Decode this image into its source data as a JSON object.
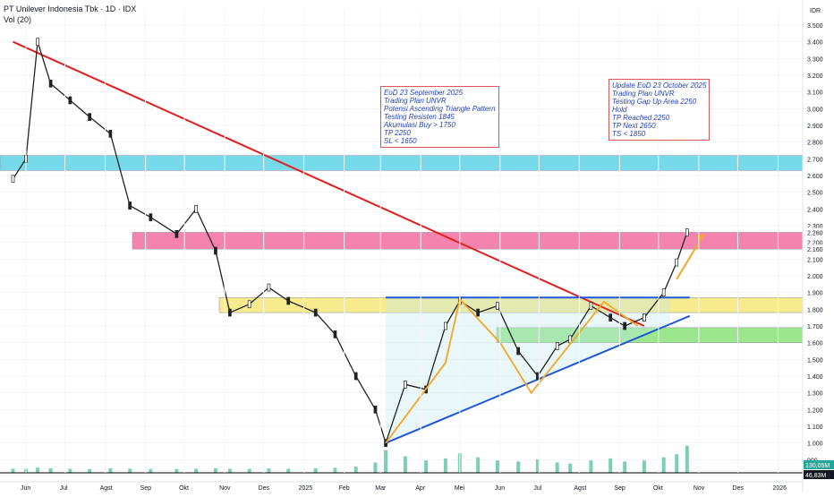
{
  "header": {
    "title": "PT Unilever Indonesia Tbk · 1D · IDX",
    "volume_label": "Vol (20)"
  },
  "price_axis": {
    "currency": "IDR",
    "ticks": [
      "3.500",
      "3.400",
      "3.300",
      "3.200",
      "3.100",
      "3.000",
      "2.900",
      "2.800",
      "2.700",
      "2.600",
      "2.500",
      "2.400",
      "2.300",
      "2.200",
      "2.100",
      "2.000",
      "1.900",
      "1.800",
      "1.700",
      "1.600",
      "1.500",
      "1.400",
      "1.300",
      "1.200",
      "1.100",
      "1.000",
      "900"
    ],
    "highlight_labels": [
      "2.260",
      "2.160"
    ],
    "volume_badges": [
      "130,05M",
      "46,83M"
    ]
  },
  "time_axis": {
    "labels": [
      "Jun",
      "Jul",
      "Agst",
      "Sep",
      "Okt",
      "Nov",
      "Des",
      "2025",
      "Feb",
      "Mar",
      "Apr",
      "Mei",
      "Jun",
      "Jul",
      "Agst",
      "Sep",
      "Okt",
      "Nov",
      "Des",
      "2026"
    ]
  },
  "chart_data": {
    "type": "line",
    "title": "PT Unilever Indonesia Tbk · 1D · IDX",
    "xlabel": "",
    "ylabel": "IDR",
    "ylim": [
      950,
      3550
    ],
    "grid": true,
    "x": [
      "2024-05-22",
      "2024-06-01",
      "2024-06-10",
      "2024-06-20",
      "2024-07-05",
      "2024-07-20",
      "2024-08-05",
      "2024-08-20",
      "2024-09-05",
      "2024-09-25",
      "2024-10-10",
      "2024-10-25",
      "2024-11-05",
      "2024-11-20",
      "2024-12-05",
      "2024-12-20",
      "2025-01-10",
      "2025-01-25",
      "2025-02-10",
      "2025-02-25",
      "2025-03-05",
      "2025-03-20",
      "2025-04-05",
      "2025-04-20",
      "2025-05-01",
      "2025-05-15",
      "2025-05-30",
      "2025-06-15",
      "2025-06-30",
      "2025-07-15",
      "2025-07-25",
      "2025-08-10",
      "2025-08-25",
      "2025-09-05",
      "2025-09-20",
      "2025-10-05",
      "2025-10-15",
      "2025-10-23"
    ],
    "series": [
      {
        "values": [
          2580,
          2700,
          3400,
          3150,
          3050,
          2950,
          2850,
          2420,
          2350,
          2250,
          2400,
          2150,
          1780,
          1830,
          1930,
          1850,
          1780,
          1650,
          1400,
          1200,
          1000,
          1350,
          1320,
          1700,
          1850,
          1780,
          1820,
          1550,
          1400,
          1580,
          1620,
          1820,
          1750,
          1700,
          1750,
          1900,
          2080,
          2260
        ]
      }
    ],
    "volume": [
      20,
      20,
      25,
      22,
      20,
      18,
      22,
      20,
      19,
      18,
      20,
      22,
      20,
      19,
      21,
      20,
      22,
      24,
      30,
      50,
      110,
      80,
      60,
      70,
      95,
      75,
      60,
      55,
      65,
      50,
      45,
      60,
      70,
      55,
      60,
      75,
      90,
      130
    ],
    "zones": [
      {
        "from": 2630,
        "to": 2720,
        "color": "#5fd3e8"
      },
      {
        "from": 2160,
        "to": 2260,
        "color": "#f26fa0"
      },
      {
        "from": 1780,
        "to": 1870,
        "color": "#f6e87a"
      },
      {
        "from": 1600,
        "to": 1690,
        "color": "#8be27a"
      }
    ],
    "lines": [
      {
        "name": "downtrend",
        "color": "#e02020",
        "from": [
          "2024-05-22",
          3400
        ],
        "to": [
          "2025-09-20",
          1700
        ]
      },
      {
        "name": "ascending-support",
        "color": "#2156d8",
        "from": [
          "2025-03-05",
          1000
        ],
        "to": [
          "2025-10-25",
          1760
        ]
      },
      {
        "name": "resistance",
        "color": "#2156d8",
        "from": [
          "2025-03-05",
          1870
        ],
        "to": [
          "2025-10-25",
          1870
        ]
      }
    ],
    "pattern_path": [
      [
        "2025-03-05",
        1000
      ],
      [
        "2025-04-20",
        1480
      ],
      [
        "2025-05-01",
        1860
      ],
      [
        "2025-06-01",
        1600
      ],
      [
        "2025-06-25",
        1300
      ],
      [
        "2025-08-20",
        1845
      ],
      [
        "2025-09-15",
        1700
      ]
    ],
    "target_arrow": {
      "from": [
        "2025-10-15",
        1980
      ],
      "to": [
        "2025-11-05",
        2250
      ],
      "color": "#f5a623"
    },
    "annotations": [
      {
        "lines": [
          "EoD 23 September 2025",
          "Trading Plan UNVR",
          "Potensi Ascending Triangle Pattern",
          "Testing Resisten 1845",
          "Akumulasi Buy > 1750",
          "TP 2250",
          "SL < 1650"
        ]
      },
      {
        "lines": [
          "Update EoD 23 October 2025",
          "Trading Plan UNVR",
          "Testing Gap Up Area 2250",
          "Hold",
          "TP Reached 2250",
          "TP Next 2650",
          "TS < 1850"
        ]
      }
    ]
  }
}
